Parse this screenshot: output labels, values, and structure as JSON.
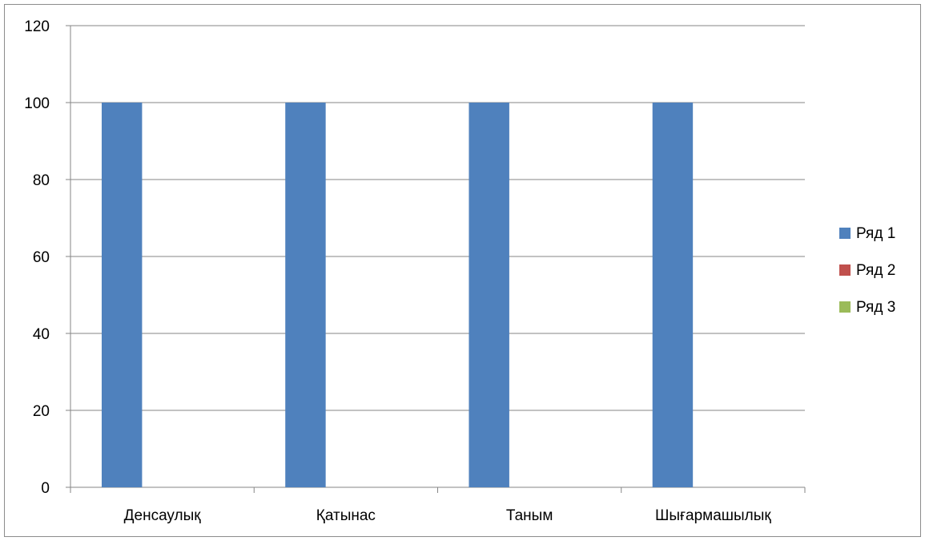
{
  "chart_data": {
    "type": "bar",
    "categories": [
      "Денсаулық",
      "Қатынас",
      "Таным",
      "Шығармашылық"
    ],
    "series": [
      {
        "name": "Ряд 1",
        "values": [
          100,
          100,
          100,
          100
        ],
        "color": "#4F81BD"
      },
      {
        "name": "Ряд 2",
        "values": [
          0,
          0,
          0,
          0
        ],
        "color": "#C0504D"
      },
      {
        "name": "Ряд 3",
        "values": [
          0,
          0,
          0,
          0
        ],
        "color": "#9BBB59"
      }
    ],
    "ylim": [
      0,
      120
    ],
    "yticks": [
      0,
      20,
      40,
      60,
      80,
      100,
      120
    ],
    "grid": true,
    "legend": "right",
    "gridline_color": "#868686"
  }
}
